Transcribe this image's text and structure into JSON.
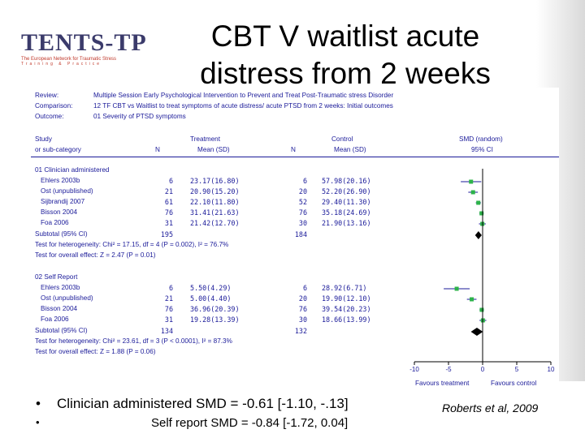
{
  "slide": {
    "title_line1": "CBT V waitlist acute",
    "title_line2": "distress from 2 weeks",
    "logo": {
      "text": "TENTS-TP",
      "sub": "The European Network for Traumatic Stress",
      "sub2": "Training & Practice"
    },
    "bullets": [
      {
        "marker": "•",
        "text": "Clinician administered SMD = -0.61 [-1.10, -.13]"
      },
      {
        "marker": "•",
        "text": "Self report SMD = -0.84 [-1.72, 0.04]"
      }
    ],
    "citation": "Roberts et al, 2009"
  },
  "forest": {
    "review_label": "Review:",
    "review": "Multiple Session Early Psychological Intervention to Prevent and Treat Post-Traumatic stress Disorder",
    "comparison_label": "Comparison:",
    "comparison": "12 TF CBT vs Waitlist to treat symptoms of acute distress/ acute PTSD from 2 weeks: Initial outcomes",
    "outcome_label": "Outcome:",
    "outcome": "01 Severity of PTSD symptoms",
    "headers": {
      "study1": "Study",
      "study2": "or sub-category",
      "treatment": "Treatment",
      "n": "N",
      "mean": "Mean (SD)",
      "control": "Control",
      "n2": "N",
      "mean2": "Mean (SD)",
      "smd1": "SMD (random)",
      "smd2": "95% CI"
    },
    "groups": [
      {
        "name": "01 Clinician administered",
        "subtotal_label": "Subtotal (95% CI)",
        "subtotal_n1": "195",
        "subtotal_n2": "184",
        "het": "Test for heterogeneity: Chi² = 17.15, df = 4 (P = 0.002), I² = 76.7%",
        "overall": "Test for overall effect: Z = 2.47 (P = 0.01)"
      },
      {
        "name": "02 Self Report",
        "subtotal_label": "Subtotal (95% CI)",
        "subtotal_n1": "134",
        "subtotal_n2": "132",
        "het": "Test for heterogeneity: Chi² = 23.61, df = 3 (P < 0.0001), I² = 87.3%",
        "overall": "Test for overall effect: Z = 1.88 (P = 0.06)"
      }
    ],
    "axis_footer": {
      "left": "Favours treatment",
      "right": "Favours control"
    }
  },
  "chart_data": {
    "type": "forest",
    "xlim": [
      -10,
      10
    ],
    "xticks": [
      "-10",
      "-5",
      "0",
      "5",
      "10"
    ],
    "xtick_values": [
      -10,
      -5,
      0,
      5,
      10
    ],
    "groups": [
      {
        "name": "01 Clinician administered",
        "studies": [
          {
            "study": "Ehlers 2003b",
            "n1": "6",
            "t_mean": "23.17(16.80)",
            "n2": "6",
            "c_mean": "57.98(20.16)",
            "smd": -1.7,
            "lo": -3.2,
            "hi": -0.2
          },
          {
            "study": "Ost (unpublished)",
            "n1": "21",
            "t_mean": "20.90(15.20)",
            "n2": "20",
            "c_mean": "52.20(26.90)",
            "smd": -1.4,
            "lo": -2.1,
            "hi": -0.7
          },
          {
            "study": "Sijbrandij 2007",
            "n1": "61",
            "t_mean": "22.10(11.80)",
            "n2": "52",
            "c_mean": "29.40(11.30)",
            "smd": -0.63,
            "lo": -1.0,
            "hi": -0.25
          },
          {
            "study": "Bisson 2004",
            "n1": "76",
            "t_mean": "31.41(21.63)",
            "n2": "76",
            "c_mean": "35.18(24.69)",
            "smd": -0.16,
            "lo": -0.48,
            "hi": 0.16
          },
          {
            "study": "Foa 2006",
            "n1": "31",
            "t_mean": "21.42(12.70)",
            "n2": "30",
            "c_mean": "21.90(13.16)",
            "smd": -0.04,
            "lo": -0.54,
            "hi": 0.46
          }
        ],
        "subtotal": {
          "smd": -0.61,
          "lo": -1.1,
          "hi": -0.13
        }
      },
      {
        "name": "02 Self Report",
        "studies": [
          {
            "study": "Ehlers 2003b",
            "n1": "6",
            "t_mean": "5.50(4.29)",
            "n2": "6",
            "c_mean": "28.92(6.71)",
            "smd": -3.8,
            "lo": -5.7,
            "hi": -1.9
          },
          {
            "study": "Ost (unpublished)",
            "n1": "21",
            "t_mean": "5.00(4.40)",
            "n2": "20",
            "c_mean": "19.90(12.10)",
            "smd": -1.6,
            "lo": -2.3,
            "hi": -0.9
          },
          {
            "study": "Bisson 2004",
            "n1": "76",
            "t_mean": "36.96(20.39)",
            "n2": "76",
            "c_mean": "39.54(20.23)",
            "smd": -0.13,
            "lo": -0.45,
            "hi": 0.19
          },
          {
            "study": "Foa 2006",
            "n1": "31",
            "t_mean": "19.28(13.39)",
            "n2": "30",
            "c_mean": "18.66(13.99)",
            "smd": 0.04,
            "lo": -0.46,
            "hi": 0.54
          }
        ],
        "subtotal": {
          "smd": -0.84,
          "lo": -1.72,
          "hi": 0.04
        }
      }
    ]
  }
}
